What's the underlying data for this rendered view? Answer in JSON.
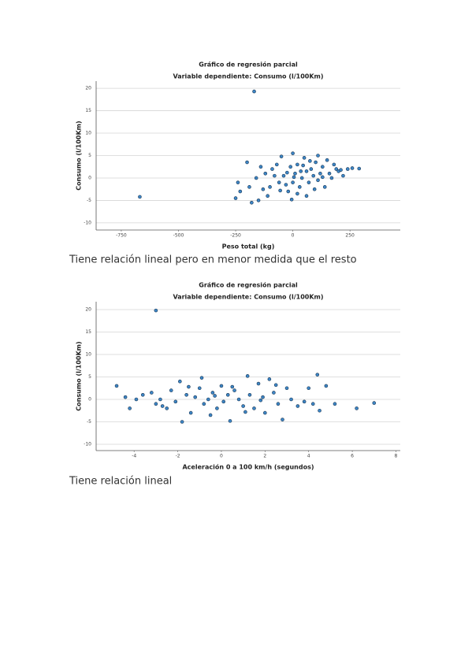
{
  "chart_data": [
    {
      "type": "scatter",
      "title": "Gráfico de regresión parcial",
      "subtitle": "Variable dependiente: Consumo (l/100Km)",
      "x_label": "Peso total (kg)",
      "y_label": "Consumo (l/100Km)",
      "color": "#3d86c6",
      "grid": true,
      "xlim": [
        -860,
        470
      ],
      "xticks": [
        -750,
        -500,
        -250,
        0,
        250
      ],
      "ylim": [
        -11.6,
        21.6
      ],
      "yticks": [
        -10,
        -5,
        0,
        5,
        10,
        15,
        20
      ],
      "x": [
        -169,
        -669,
        -250,
        -230,
        -240,
        -200,
        -180,
        -150,
        -160,
        -120,
        -100,
        -90,
        -60,
        -50,
        -40,
        -20,
        -10,
        0,
        0,
        10,
        20,
        30,
        40,
        50,
        60,
        70,
        80,
        90,
        100,
        110,
        120,
        130,
        140,
        150,
        160,
        170,
        180,
        190,
        200,
        210,
        220,
        240,
        260,
        290,
        -130,
        -70,
        -30,
        -80,
        20,
        60,
        110,
        -110,
        -140,
        5,
        -25,
        35,
        75,
        -55,
        95,
        130,
        -190,
        -5,
        45
      ],
      "values": [
        19.3,
        -4.2,
        -4.5,
        -3,
        -1,
        3.5,
        -5.5,
        -5,
        0,
        1,
        -2,
        2,
        -1,
        4.8,
        0.5,
        -3,
        2.5,
        5.5,
        -1,
        1,
        3,
        -2,
        0,
        4.5,
        1.5,
        -1,
        2,
        0.5,
        3.5,
        -0.5,
        1,
        2.5,
        -2,
        4,
        1,
        0,
        3,
        2,
        1.5,
        1.8,
        0.5,
        2,
        2.2,
        2.1,
        -2.5,
        3,
        -1.5,
        0.5,
        -3.5,
        -4,
        5,
        -4,
        2.5,
        0.2,
        1.2,
        1.5,
        3.8,
        -2.8,
        -2.5,
        0.2,
        -2,
        -4.8,
        2.8
      ]
    },
    {
      "type": "scatter",
      "title": "Gráfico de regresión parcial",
      "subtitle": "Variable dependiente: Consumo (l/100Km)",
      "x_label": "Aceleración 0 a 100 km/h (segundos)",
      "y_label": "Consumo (l/100Km)",
      "color": "#3d86c6",
      "grid": true,
      "xlim": [
        -5.74,
        8.2
      ],
      "xticks": [
        -4,
        -2,
        0,
        2,
        4,
        6,
        8
      ],
      "ylim": [
        -11.4,
        21.75
      ],
      "yticks": [
        -10,
        -5,
        0,
        5,
        10,
        15,
        20
      ],
      "x": [
        -3,
        -4.8,
        -4.4,
        -4.2,
        -3.9,
        -3.6,
        -3.2,
        -3,
        -2.8,
        -2.5,
        -2.3,
        -2.1,
        -1.9,
        -1.8,
        -1.6,
        -1.4,
        -1.2,
        -1,
        -0.9,
        -0.8,
        -0.6,
        -0.4,
        -0.2,
        0,
        0.1,
        0.3,
        0.4,
        0.6,
        0.8,
        1,
        1.2,
        1.3,
        1.5,
        1.7,
        1.9,
        2,
        2.2,
        2.4,
        2.6,
        2.8,
        3,
        3.2,
        3.5,
        4,
        4.2,
        4.4,
        4.5,
        4.8,
        5.2,
        6.2,
        7,
        -0.5,
        0.5,
        1.8,
        -1.5,
        2.5,
        -2.7,
        3.8,
        -0.3,
        1.1
      ],
      "values": [
        19.8,
        3,
        0.5,
        -2,
        0,
        1,
        1.5,
        -1,
        0,
        -2,
        2,
        -0.5,
        4,
        -5,
        1,
        -3,
        0.5,
        2.5,
        4.8,
        -1,
        0,
        1.5,
        -2,
        3,
        -0.5,
        1,
        -4.8,
        2,
        0,
        -1.5,
        5.2,
        1,
        -2,
        3.5,
        0.5,
        -3,
        4.5,
        1.5,
        -1,
        -4.5,
        2.5,
        0,
        -1.5,
        2.5,
        -1,
        5.5,
        -2.5,
        3,
        -1,
        -2,
        -0.8,
        -3.5,
        2.8,
        -0.2,
        2.8,
        3.2,
        -1.5,
        -0.5,
        0.8,
        -2.8
      ]
    }
  ],
  "captions": [
    "Tiene relación lineal pero en menor medida que el resto",
    "Tiene relación lineal"
  ]
}
